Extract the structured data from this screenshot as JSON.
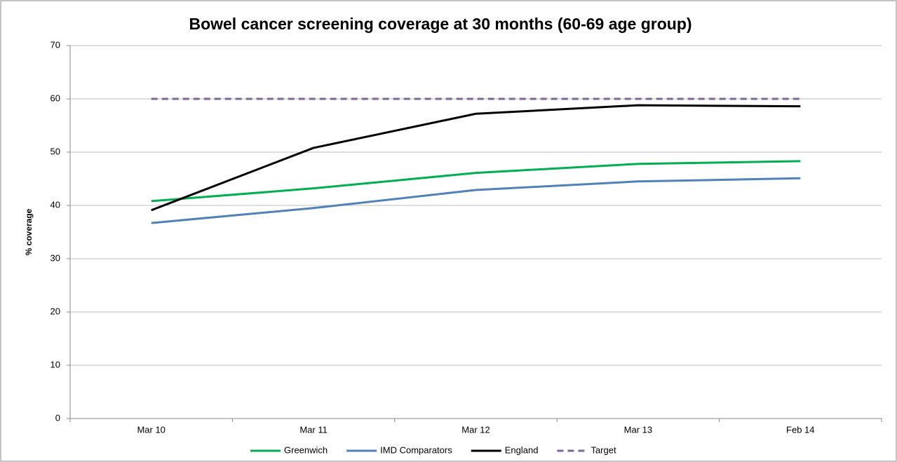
{
  "chart_data": {
    "type": "line",
    "title": "Bowel cancer screening coverage at 30 months  (60-69 age group)",
    "y_label": "% coverage",
    "categories": [
      "Mar 10",
      "Mar 11",
      "Mar 12",
      "Mar 13",
      "Feb 14"
    ],
    "series": [
      {
        "name": "Greenwich",
        "color": "#00b050",
        "values": [
          40.8,
          43.2,
          46.1,
          47.8,
          48.3
        ]
      },
      {
        "name": "IMD Comparators",
        "color": "#4f81bd",
        "values": [
          36.7,
          39.5,
          42.9,
          44.5,
          45.1
        ]
      },
      {
        "name": "England",
        "color": "#000000",
        "values": [
          39.1,
          50.8,
          57.2,
          58.8,
          58.6
        ]
      },
      {
        "name": "Target",
        "color": "#8064a2",
        "dashed": true,
        "values": [
          60,
          60,
          60,
          60,
          60
        ]
      }
    ],
    "ylim": [
      0,
      70
    ],
    "yticks": [
      0,
      10,
      20,
      30,
      40,
      50,
      60,
      70
    ],
    "grid": true,
    "legend": "bottom"
  }
}
